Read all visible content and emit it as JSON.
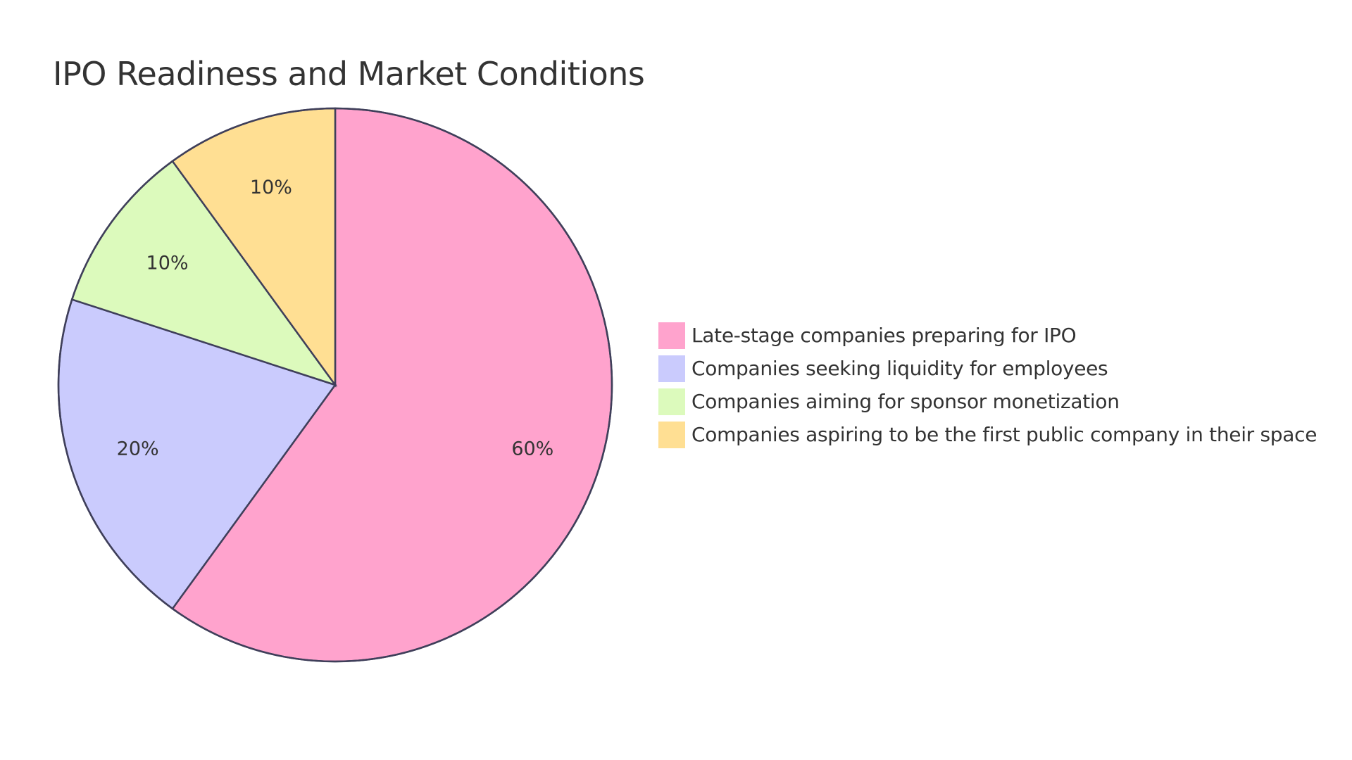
{
  "title": "IPO Readiness and Market Conditions",
  "chart_data": {
    "type": "pie",
    "title": "IPO Readiness and Market Conditions",
    "categories": [
      "Late-stage companies preparing for IPO",
      "Companies seeking liquidity for employees",
      "Companies aiming for sponsor monetization",
      "Companies aspiring to be the first public company in their space"
    ],
    "values": [
      60,
      20,
      10,
      10
    ],
    "labels": [
      "60%",
      "20%",
      "10%",
      "10%"
    ],
    "colors": [
      "#FFA3CD",
      "#CACBFD",
      "#DCFABC",
      "#FFDF93"
    ],
    "stroke_color": "#3F3F5A",
    "start_angle_deg": 0,
    "direction": "clockwise",
    "legend_position": "right"
  },
  "legend": {
    "items": [
      {
        "label": "Late-stage companies preparing for IPO",
        "color": "#FFA3CD"
      },
      {
        "label": "Companies seeking liquidity for employees",
        "color": "#CACBFD"
      },
      {
        "label": "Companies aiming for sponsor monetization",
        "color": "#DCFABC"
      },
      {
        "label": "Companies aspiring to be the first public company in their space",
        "color": "#FFDF93"
      }
    ]
  }
}
